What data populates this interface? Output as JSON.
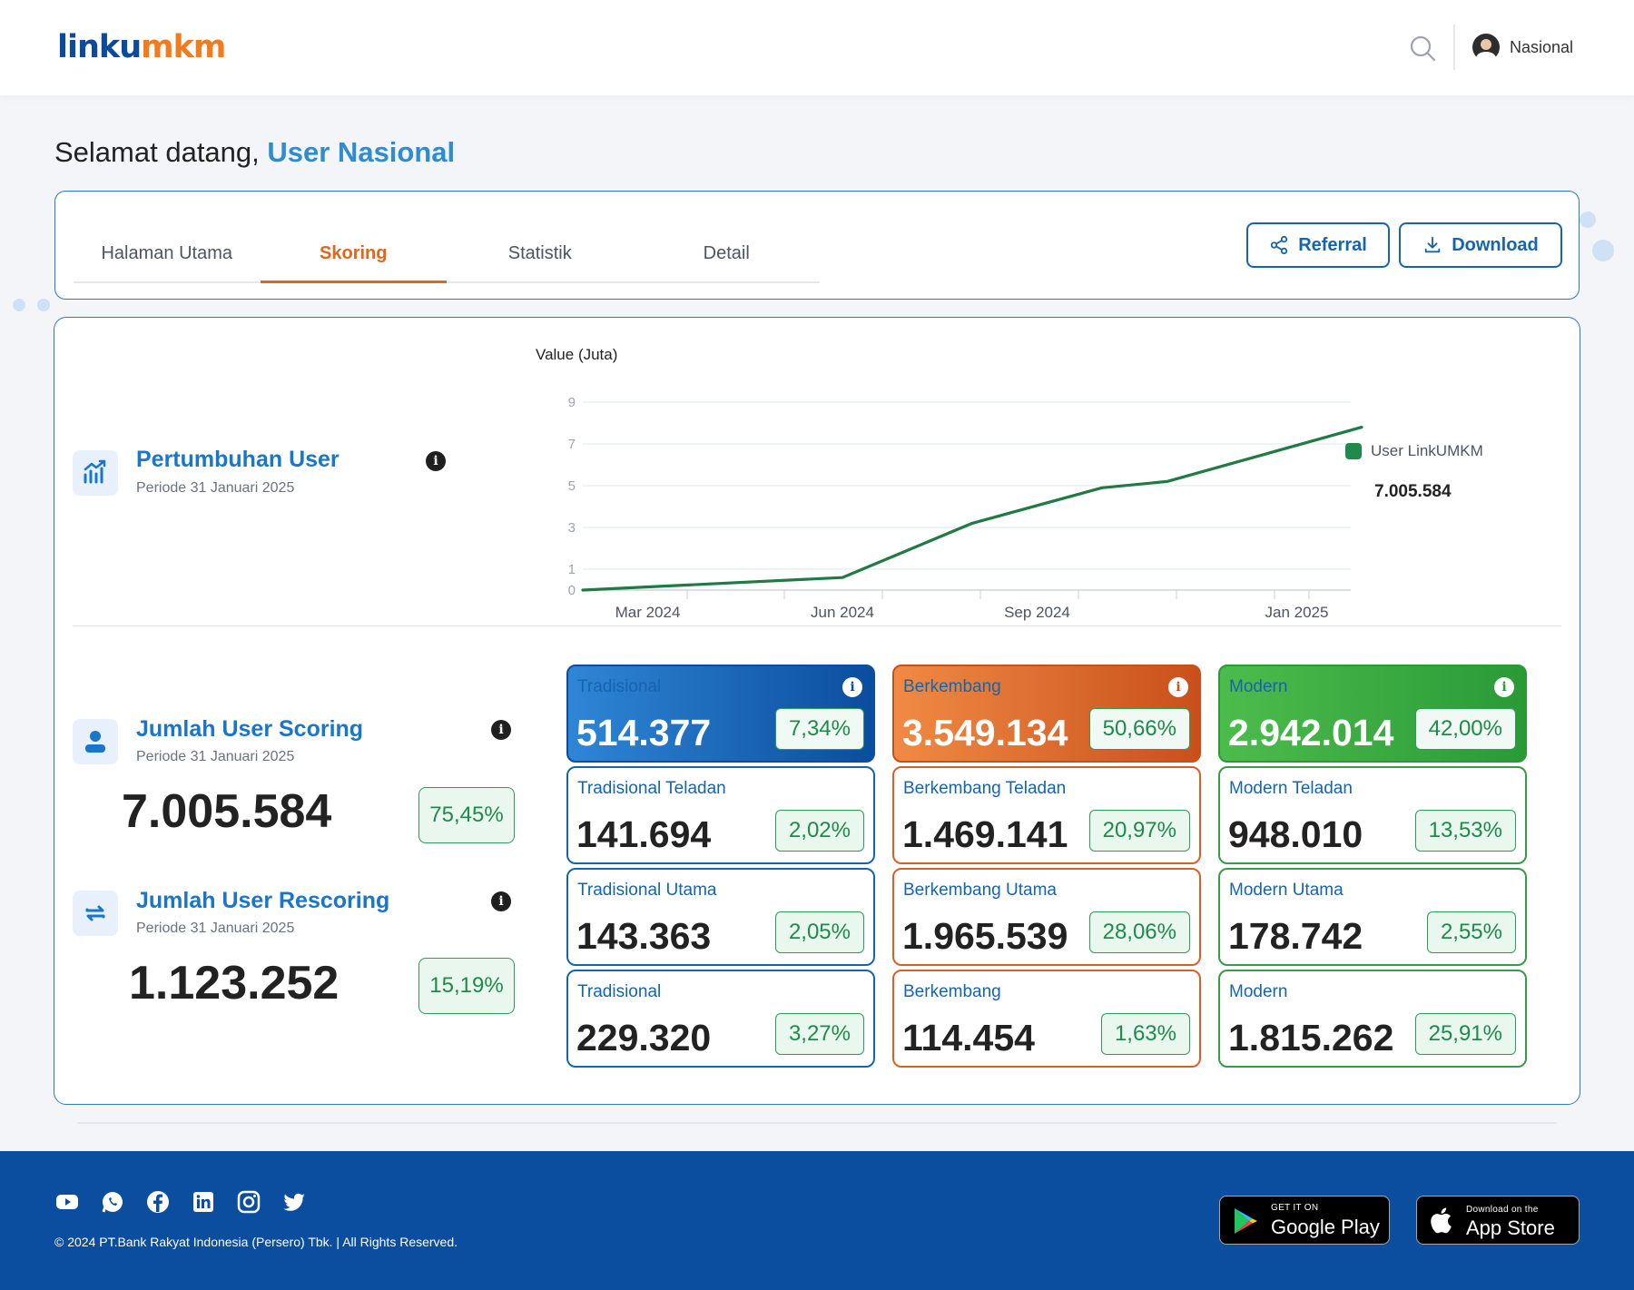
{
  "header": {
    "logo_part1": "linku",
    "logo_part2": "mkm",
    "user_name": "Nasional"
  },
  "welcome": {
    "prefix": "Selamat datang, ",
    "name": "User Nasional"
  },
  "tabs": [
    {
      "label": "Halaman Utama"
    },
    {
      "label": "Skoring",
      "active": true
    },
    {
      "label": "Statistik"
    },
    {
      "label": "Detail"
    }
  ],
  "actions": {
    "referral": "Referral",
    "download": "Download"
  },
  "growth": {
    "title": "Pertumbuhan User",
    "period": "Periode 31 Januari 2025",
    "legend_name": "User LinkUMKM",
    "legend_total": "7.005.584"
  },
  "chart_data": {
    "type": "line",
    "ylabel": "Value (Juta)",
    "yticks": [
      0,
      1,
      3,
      5,
      7,
      9
    ],
    "xtick_labels": [
      "Mar 2024",
      "Jun 2024",
      "Sep 2024",
      "Jan 2025"
    ],
    "series": [
      {
        "name": "User LinkUMKM",
        "color": "#1f7a43",
        "x": [
          "Feb 2024",
          "Jun 2024",
          "Aug 2024",
          "Oct 2024",
          "Nov 2024",
          "Feb 2025"
        ],
        "values": [
          0,
          0.6,
          3.2,
          4.9,
          5.2,
          7.8
        ]
      }
    ]
  },
  "scoring": {
    "title": "Jumlah User Scoring",
    "period": "Periode 31 Januari 2025",
    "total": "7.005.584",
    "pct": "75,45%"
  },
  "rescoring": {
    "title": "Jumlah User Rescoring",
    "period": "Periode 31 Januari 2025",
    "total": "1.123.252",
    "pct": "15,19%"
  },
  "categories": {
    "tradisional": [
      {
        "label": "Tradisional",
        "value": "514.377",
        "pct": "7,34%"
      },
      {
        "label": "Tradisional Teladan",
        "value": "141.694",
        "pct": "2,02%"
      },
      {
        "label": "Tradisional Utama",
        "value": "143.363",
        "pct": "2,05%"
      },
      {
        "label": "Tradisional",
        "value": "229.320",
        "pct": "3,27%"
      }
    ],
    "berkembang": [
      {
        "label": "Berkembang",
        "value": "3.549.134",
        "pct": "50,66%"
      },
      {
        "label": "Berkembang Teladan",
        "value": "1.469.141",
        "pct": "20,97%"
      },
      {
        "label": "Berkembang Utama",
        "value": "1.965.539",
        "pct": "28,06%"
      },
      {
        "label": "Berkembang",
        "value": "114.454",
        "pct": "1,63%"
      }
    ],
    "modern": [
      {
        "label": "Modern",
        "value": "2.942.014",
        "pct": "42,00%"
      },
      {
        "label": "Modern Teladan",
        "value": "948.010",
        "pct": "13,53%"
      },
      {
        "label": "Modern Utama",
        "value": "178.742",
        "pct": "2,55%"
      },
      {
        "label": "Modern",
        "value": "1.815.262",
        "pct": "25,91%"
      }
    ]
  },
  "footer": {
    "copyright": "© 2024 PT.Bank Rakyat Indonesia (Persero) Tbk. | All Rights Reserved.",
    "google_small": "GET IT ON",
    "google_big": "Google Play",
    "apple_small": "Download on the",
    "apple_big": "App Store"
  }
}
